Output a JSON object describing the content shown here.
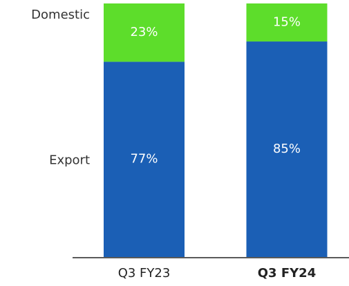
{
  "chart_data": {
    "type": "stacked_bar",
    "categories": [
      "Q3 FY23",
      "Q3 FY24"
    ],
    "series": [
      {
        "name": "Export",
        "color": "#1b5fb5",
        "values": [
          77,
          85
        ],
        "value_labels": [
          "77%",
          "85%"
        ]
      },
      {
        "name": "Domestic",
        "color": "#5ddd2b",
        "values": [
          23,
          15
        ],
        "value_labels": [
          "23%",
          "15%"
        ]
      }
    ],
    "ylim": [
      0,
      100
    ]
  }
}
